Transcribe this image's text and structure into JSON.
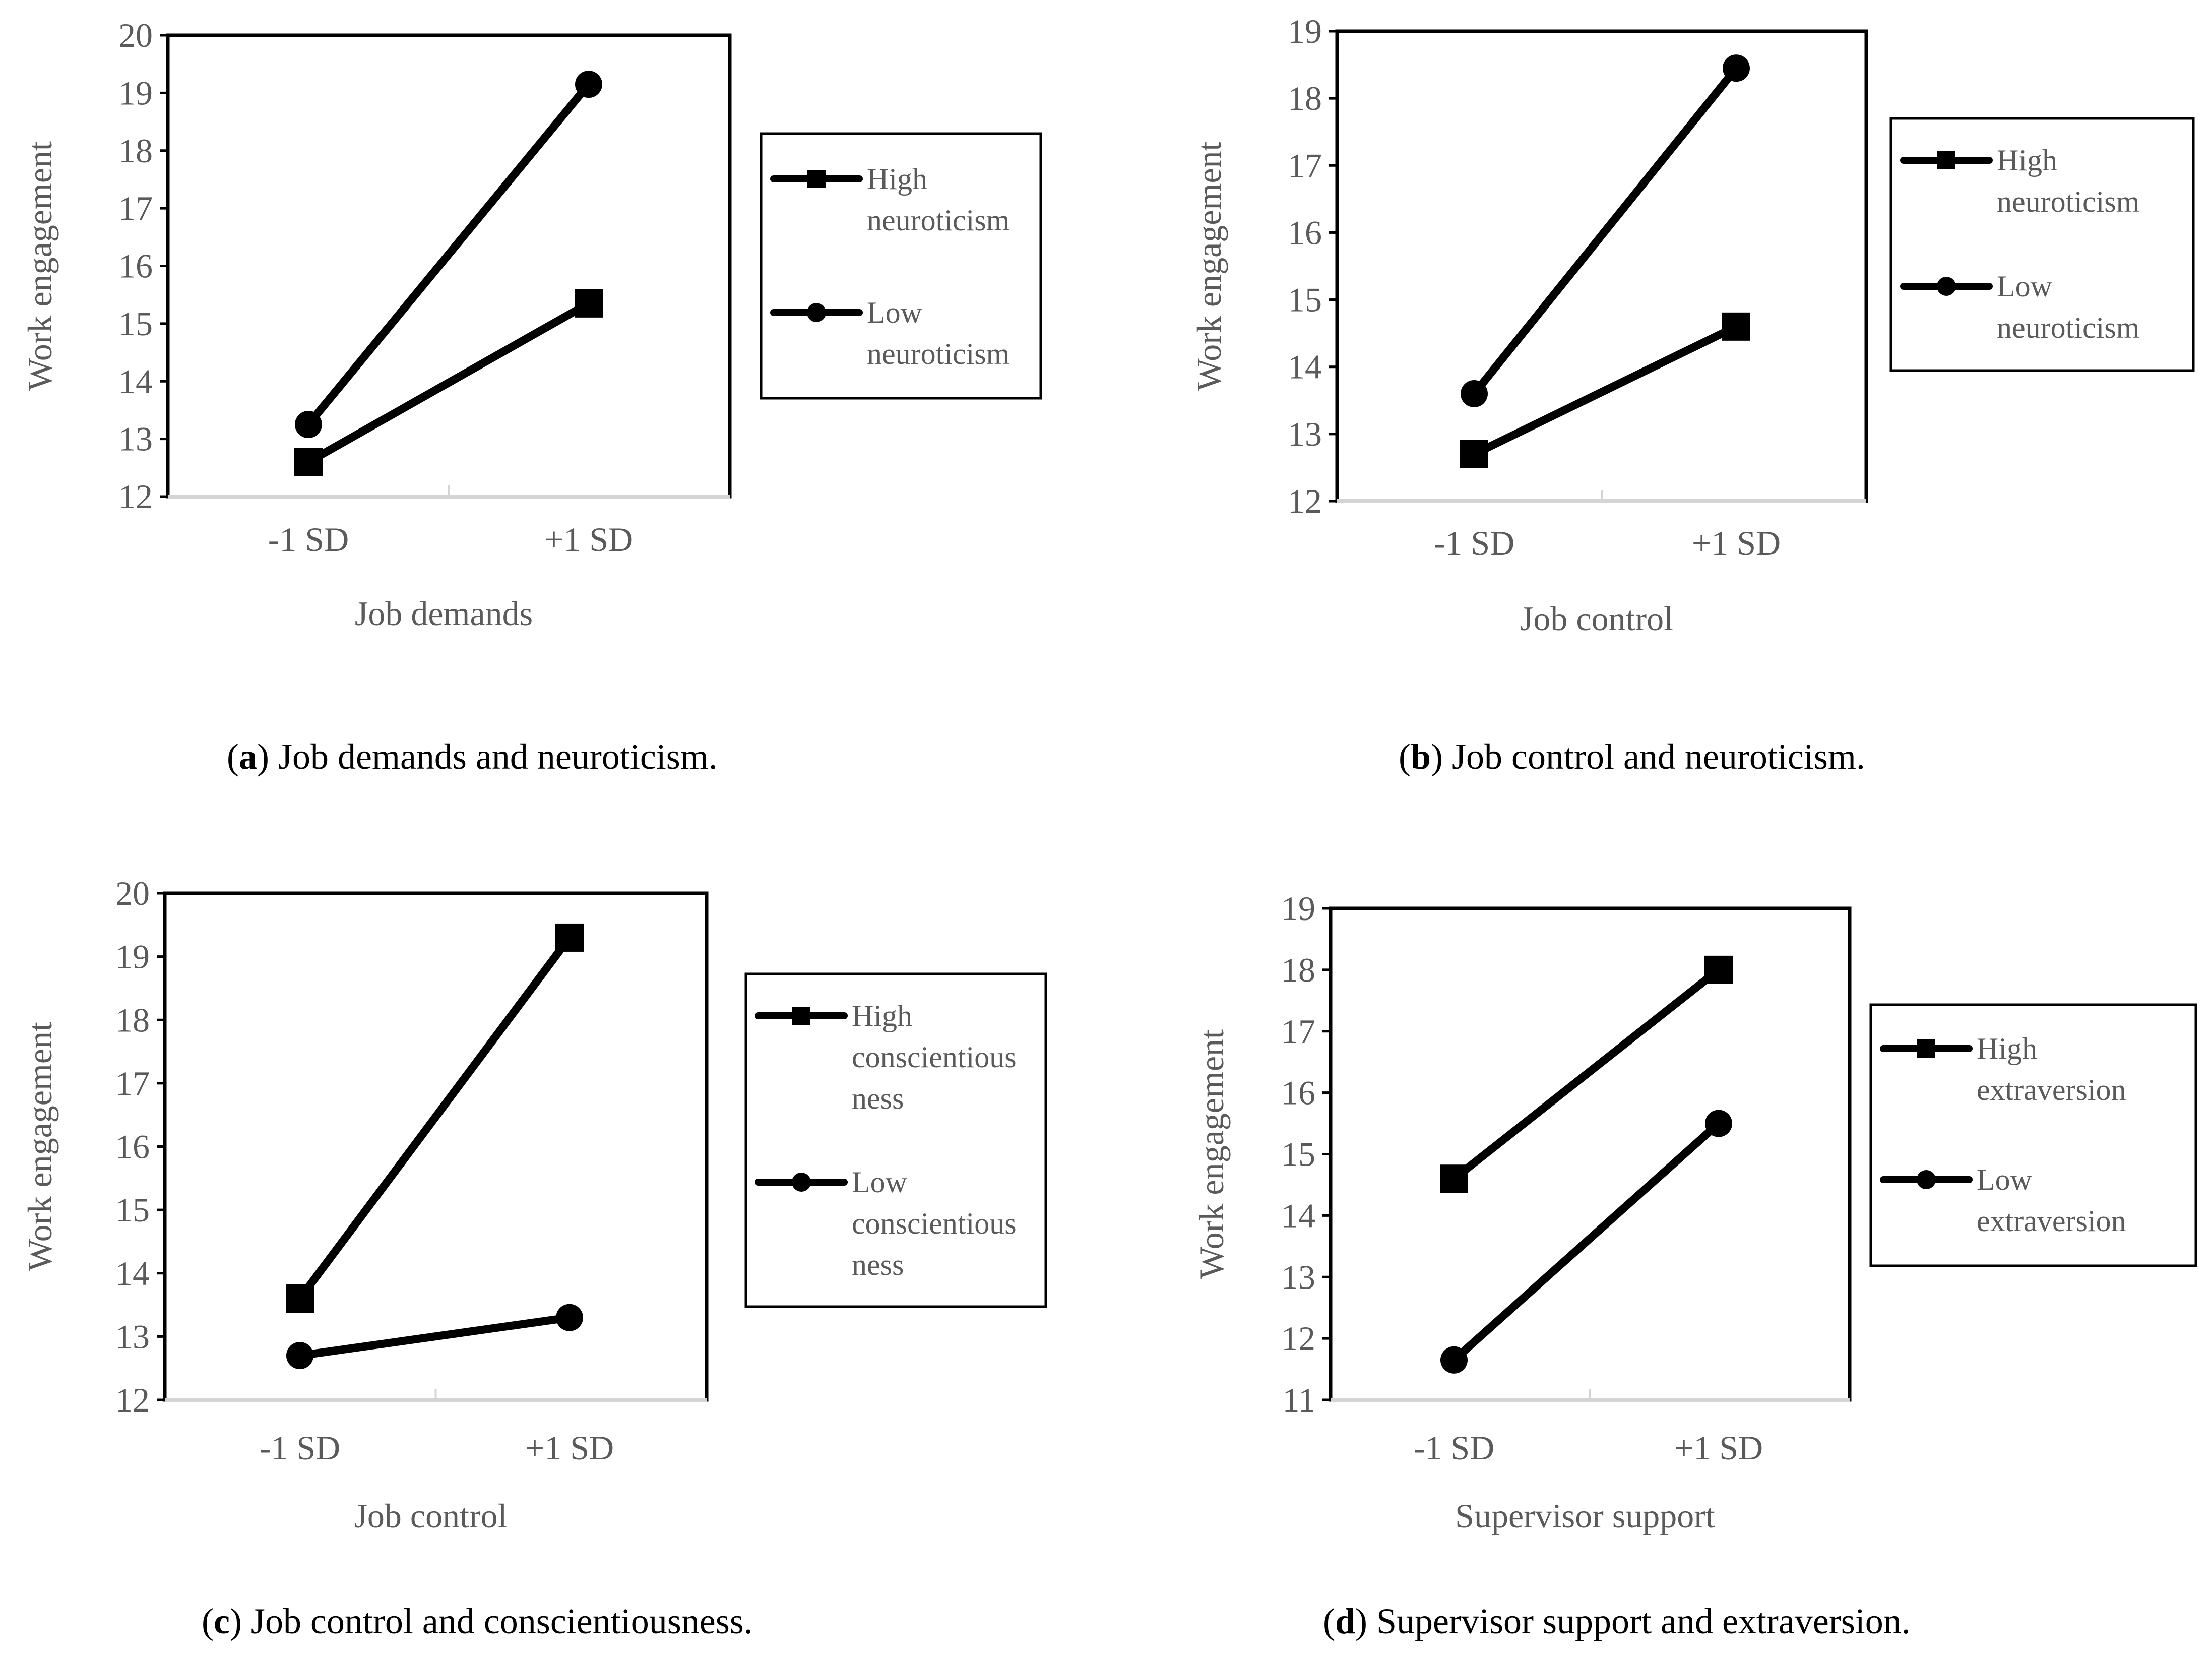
{
  "chart_data": [
    {
      "type": "line",
      "panel": "a",
      "caption_letter": "a",
      "caption_text": ") Job demands and neuroticism.",
      "categories": [
        "-1 SD",
        "+1 SD"
      ],
      "xlabel": "Job demands",
      "ylabel": "Work engagement",
      "ylim": [
        12,
        20
      ],
      "yticks": [
        "12",
        "13",
        "14",
        "15",
        "16",
        "17",
        "18",
        "19",
        "20"
      ],
      "series": [
        {
          "name": "High neuroticism",
          "legend_lines": [
            "High",
            "neuroticism"
          ],
          "marker": "square",
          "values": [
            12.6,
            15.35
          ]
        },
        {
          "name": "Low neuroticism",
          "legend_lines": [
            "Low",
            "neuroticism"
          ],
          "marker": "circle",
          "values": [
            13.25,
            19.15
          ]
        }
      ]
    },
    {
      "type": "line",
      "panel": "b",
      "caption_letter": "b",
      "caption_text": ") Job control and neuroticism.",
      "categories": [
        "-1 SD",
        "+1 SD"
      ],
      "xlabel": "Job control",
      "ylabel": "Work engagement",
      "ylim": [
        12,
        19
      ],
      "yticks": [
        "12",
        "13",
        "14",
        "15",
        "16",
        "17",
        "18",
        "19"
      ],
      "series": [
        {
          "name": "High neuroticism",
          "legend_lines": [
            "High",
            "neuroticism"
          ],
          "marker": "square",
          "values": [
            12.7,
            14.6
          ]
        },
        {
          "name": "Low neuroticism",
          "legend_lines": [
            "Low",
            "neuroticism"
          ],
          "marker": "circle",
          "values": [
            13.6,
            18.45
          ]
        }
      ]
    },
    {
      "type": "line",
      "panel": "c",
      "caption_letter": "c",
      "caption_text": ") Job control and conscientiousness.",
      "categories": [
        "-1 SD",
        "+1 SD"
      ],
      "xlabel": "Job control",
      "ylabel": "Work engagement",
      "ylim": [
        12,
        20
      ],
      "yticks": [
        "12",
        "13",
        "14",
        "15",
        "16",
        "17",
        "18",
        "19",
        "20"
      ],
      "series": [
        {
          "name": "High conscientiousness",
          "legend_lines": [
            "High",
            "conscientious",
            "ness"
          ],
          "marker": "square",
          "values": [
            13.6,
            19.3
          ]
        },
        {
          "name": "Low conscientiousness",
          "legend_lines": [
            "Low",
            "conscientious",
            "ness"
          ],
          "marker": "circle",
          "values": [
            12.7,
            13.3
          ]
        }
      ]
    },
    {
      "type": "line",
      "panel": "d",
      "caption_letter": "d",
      "caption_text": ") Supervisor support and extraversion.",
      "categories": [
        "-1 SD",
        "+1 SD"
      ],
      "xlabel": "Supervisor support",
      "ylabel": "Work engagement",
      "ylim": [
        11,
        19
      ],
      "yticks": [
        "11",
        "12",
        "13",
        "14",
        "15",
        "16",
        "17",
        "18",
        "19"
      ],
      "series": [
        {
          "name": "High extraversion",
          "legend_lines": [
            "High",
            "extraversion"
          ],
          "marker": "square",
          "values": [
            14.6,
            18.0
          ]
        },
        {
          "name": "Low extraversion",
          "legend_lines": [
            "Low",
            "extraversion"
          ],
          "marker": "circle",
          "values": [
            11.65,
            15.5
          ]
        }
      ]
    }
  ]
}
